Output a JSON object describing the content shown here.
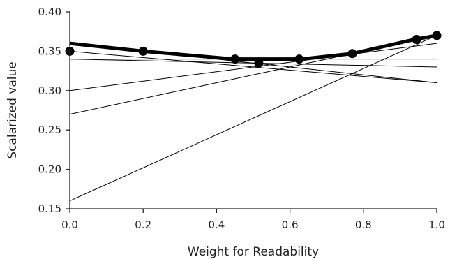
{
  "chart_data": {
    "type": "line",
    "xlabel": "Weight for Readability",
    "ylabel": "Scalarized value",
    "xlim": [
      0.0,
      1.0
    ],
    "ylim": [
      0.15,
      0.4
    ],
    "x_ticks": [
      "0.0",
      "0.2",
      "0.4",
      "0.6",
      "0.8",
      "1.0"
    ],
    "y_ticks": [
      "0.40",
      "0.35",
      "0.30",
      "0.25",
      "0.20",
      "0.15"
    ],
    "grid": false,
    "series": [
      {
        "style": "thin",
        "x": [
          0.0,
          1.0
        ],
        "y": [
          0.16,
          0.37
        ]
      },
      {
        "style": "thin",
        "x": [
          0.0,
          1.0
        ],
        "y": [
          0.27,
          0.37
        ]
      },
      {
        "style": "thin",
        "x": [
          0.0,
          1.0
        ],
        "y": [
          0.3,
          0.36
        ]
      },
      {
        "style": "thin",
        "x": [
          0.0,
          1.0
        ],
        "y": [
          0.34,
          0.34
        ]
      },
      {
        "style": "thin",
        "x": [
          0.0,
          1.0
        ],
        "y": [
          0.34,
          0.33
        ]
      },
      {
        "style": "thin",
        "x": [
          0.0,
          1.0
        ],
        "y": [
          0.35,
          0.31
        ]
      },
      {
        "style": "thin",
        "x": [
          0.0,
          1.0
        ],
        "y": [
          0.36,
          0.31
        ]
      },
      {
        "style": "envelope",
        "x": [
          0.0,
          0.2,
          0.45,
          0.52,
          0.63,
          0.77,
          0.94,
          1.0
        ],
        "y": [
          0.36,
          0.35,
          0.34,
          0.34,
          0.34,
          0.347,
          0.365,
          0.37
        ]
      }
    ],
    "points": {
      "x": [
        0.0,
        0.2,
        0.45,
        0.515,
        0.625,
        0.77,
        0.945,
        1.0
      ],
      "y": [
        0.35,
        0.35,
        0.34,
        0.335,
        0.34,
        0.347,
        0.365,
        0.37
      ]
    },
    "colors": {
      "line": "#000000",
      "axis": "#222222",
      "text": "#222222"
    }
  }
}
